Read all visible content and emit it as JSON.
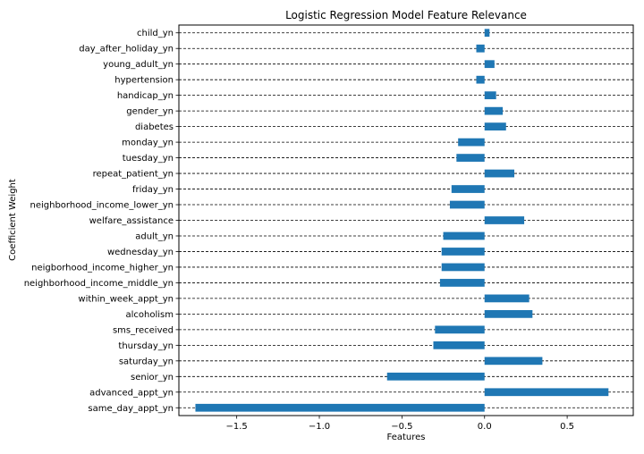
{
  "chart_data": {
    "type": "bar",
    "orientation": "horizontal",
    "title": "Logistic Regression Model Feature Relevance",
    "xlabel": "Features",
    "ylabel": "Coefficient Weight",
    "xlim": [
      -1.85,
      0.9
    ],
    "xticks": [
      -1.5,
      -1.0,
      -0.5,
      0.0,
      0.5
    ],
    "xtick_labels": [
      "−1.5",
      "−1.0",
      "−0.5",
      "0.0",
      "0.5"
    ],
    "grid": "horizontal dashed",
    "bar_color": "#1f77b4",
    "categories": [
      "child_yn",
      "day_after_holiday_yn",
      "young_adult_yn",
      "hypertension",
      "handicap_yn",
      "gender_yn",
      "diabetes",
      "monday_yn",
      "tuesday_yn",
      "repeat_patient_yn",
      "friday_yn",
      "neighborhood_income_lower_yn",
      "welfare_assistance",
      "adult_yn",
      "wednesday_yn",
      "neigborhood_income_higher_yn",
      "neighborhood_income_middle_yn",
      "within_week_appt_yn",
      "alcoholism",
      "sms_received",
      "thursday_yn",
      "saturday_yn",
      "senior_yn",
      "advanced_appt_yn",
      "same_day_appt_yn"
    ],
    "values": [
      0.03,
      -0.05,
      0.06,
      -0.05,
      0.07,
      0.11,
      0.13,
      -0.16,
      -0.17,
      0.18,
      -0.2,
      -0.21,
      0.24,
      -0.25,
      -0.26,
      -0.26,
      -0.27,
      0.27,
      0.29,
      -0.3,
      -0.31,
      0.35,
      -0.59,
      0.75,
      -1.75
    ]
  }
}
